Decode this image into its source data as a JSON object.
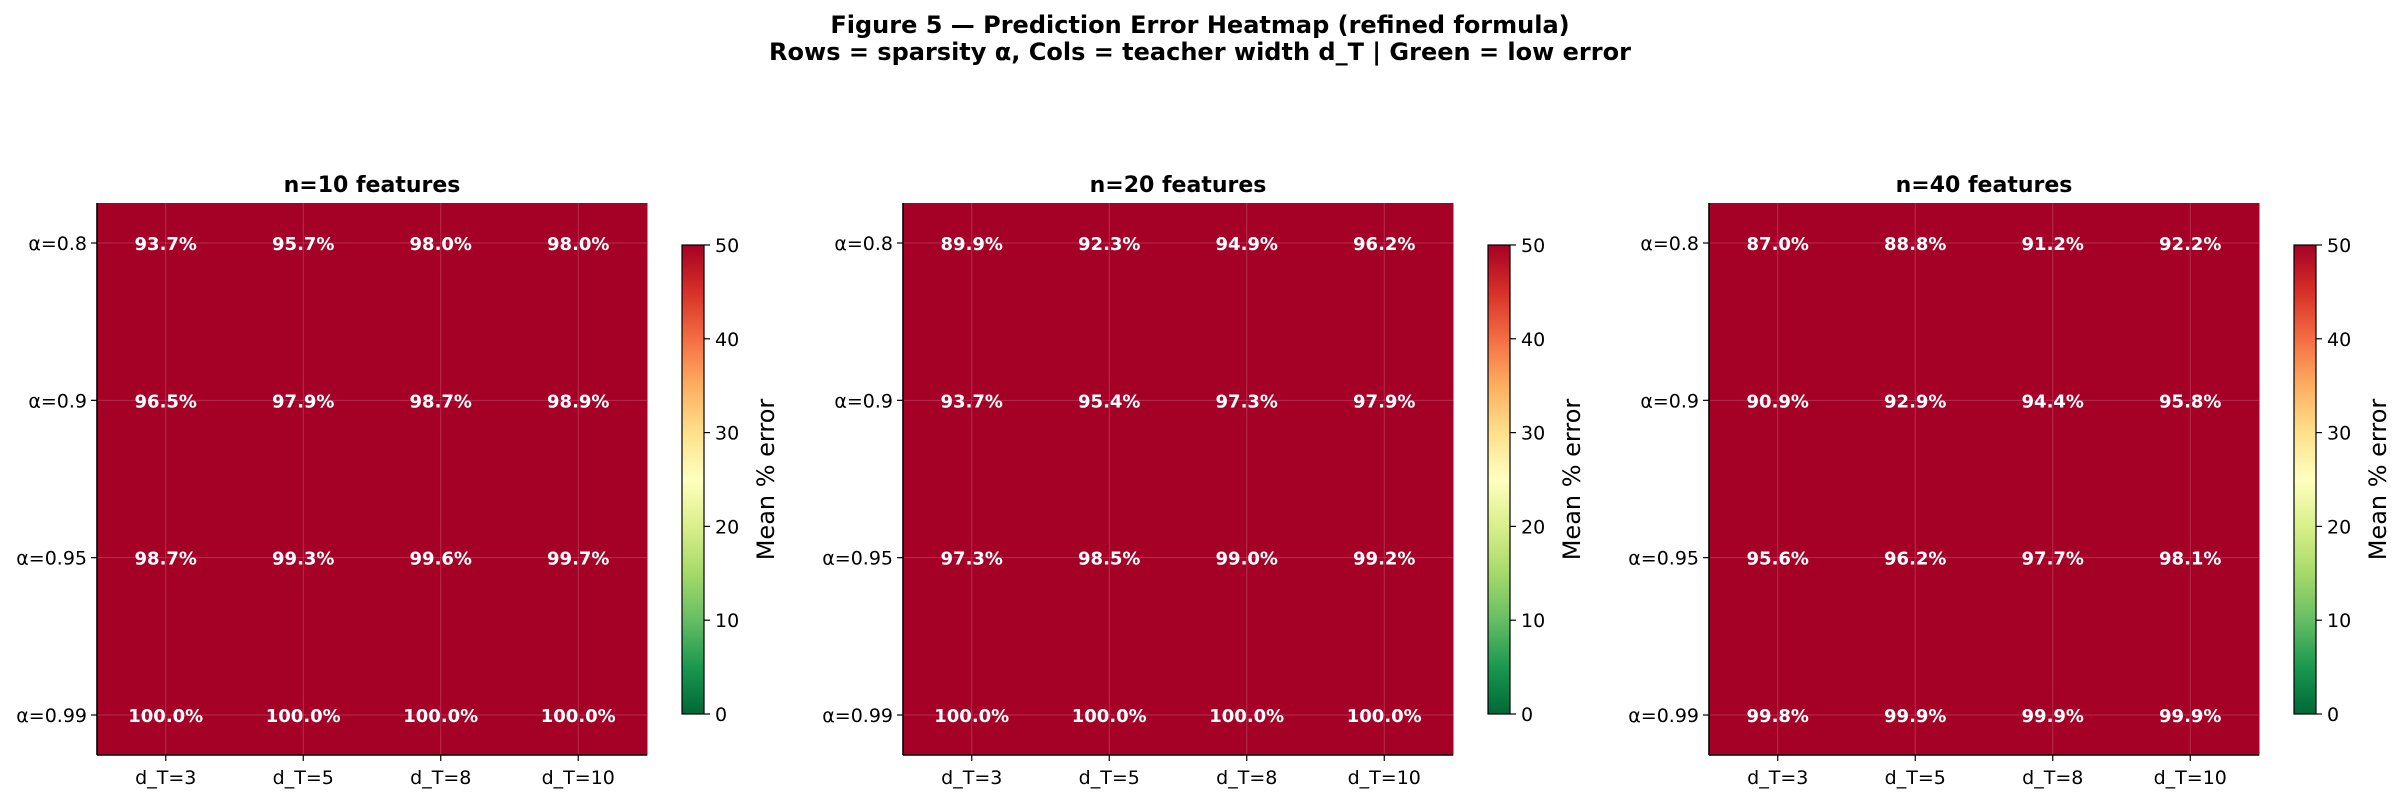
{
  "figure": {
    "title": "Figure 5 — Prediction Error Heatmap (refined formula)",
    "subtitle": "Rows = sparsity α, Cols = teacher width d_T  |  Green = low error"
  },
  "chart_data": [
    {
      "type": "heatmap",
      "title": "n=10 features",
      "rows": [
        "α=0.8",
        "α=0.9",
        "α=0.95",
        "α=0.99"
      ],
      "cols": [
        "d_T=3",
        "d_T=5",
        "d_T=8",
        "d_T=10"
      ],
      "values": [
        [
          93.7,
          95.7,
          98.0,
          98.0
        ],
        [
          96.5,
          97.9,
          98.7,
          98.9
        ],
        [
          98.7,
          99.3,
          99.6,
          99.7
        ],
        [
          100.0,
          100.0,
          100.0,
          100.0
        ]
      ],
      "cell_labels": [
        [
          "93.7%",
          "95.7%",
          "98.0%",
          "98.0%"
        ],
        [
          "96.5%",
          "97.9%",
          "98.7%",
          "98.9%"
        ],
        [
          "98.7%",
          "99.3%",
          "99.6%",
          "99.7%"
        ],
        [
          "100.0%",
          "100.0%",
          "100.0%",
          "100.0%"
        ]
      ],
      "colorbar": {
        "label": "Mean % error",
        "min": 0,
        "max": 50,
        "ticks": [
          "0",
          "10",
          "20",
          "30",
          "40",
          "50"
        ],
        "colormap": "RdYlGn_r"
      }
    },
    {
      "type": "heatmap",
      "title": "n=20 features",
      "rows": [
        "α=0.8",
        "α=0.9",
        "α=0.95",
        "α=0.99"
      ],
      "cols": [
        "d_T=3",
        "d_T=5",
        "d_T=8",
        "d_T=10"
      ],
      "values": [
        [
          89.9,
          92.3,
          94.9,
          96.2
        ],
        [
          93.7,
          95.4,
          97.3,
          97.9
        ],
        [
          97.3,
          98.5,
          99.0,
          99.2
        ],
        [
          100.0,
          100.0,
          100.0,
          100.0
        ]
      ],
      "cell_labels": [
        [
          "89.9%",
          "92.3%",
          "94.9%",
          "96.2%"
        ],
        [
          "93.7%",
          "95.4%",
          "97.3%",
          "97.9%"
        ],
        [
          "97.3%",
          "98.5%",
          "99.0%",
          "99.2%"
        ],
        [
          "100.0%",
          "100.0%",
          "100.0%",
          "100.0%"
        ]
      ],
      "colorbar": {
        "label": "Mean % error",
        "min": 0,
        "max": 50,
        "ticks": [
          "0",
          "10",
          "20",
          "30",
          "40",
          "50"
        ],
        "colormap": "RdYlGn_r"
      }
    },
    {
      "type": "heatmap",
      "title": "n=40 features",
      "rows": [
        "α=0.8",
        "α=0.9",
        "α=0.95",
        "α=0.99"
      ],
      "cols": [
        "d_T=3",
        "d_T=5",
        "d_T=8",
        "d_T=10"
      ],
      "values": [
        [
          87.0,
          88.8,
          91.2,
          92.2
        ],
        [
          90.9,
          92.9,
          94.4,
          95.8
        ],
        [
          95.6,
          96.2,
          97.7,
          98.1
        ],
        [
          99.8,
          99.9,
          99.9,
          99.9
        ]
      ],
      "cell_labels": [
        [
          "87.0%",
          "88.8%",
          "91.2%",
          "92.2%"
        ],
        [
          "90.9%",
          "92.9%",
          "94.4%",
          "95.8%"
        ],
        [
          "95.6%",
          "96.2%",
          "97.7%",
          "98.1%"
        ],
        [
          "99.8%",
          "99.9%",
          "99.9%",
          "99.9%"
        ]
      ],
      "colorbar": {
        "label": "Mean % error",
        "min": 0,
        "max": 50,
        "ticks": [
          "0",
          "10",
          "20",
          "30",
          "40",
          "50"
        ],
        "colormap": "RdYlGn_r"
      }
    }
  ]
}
